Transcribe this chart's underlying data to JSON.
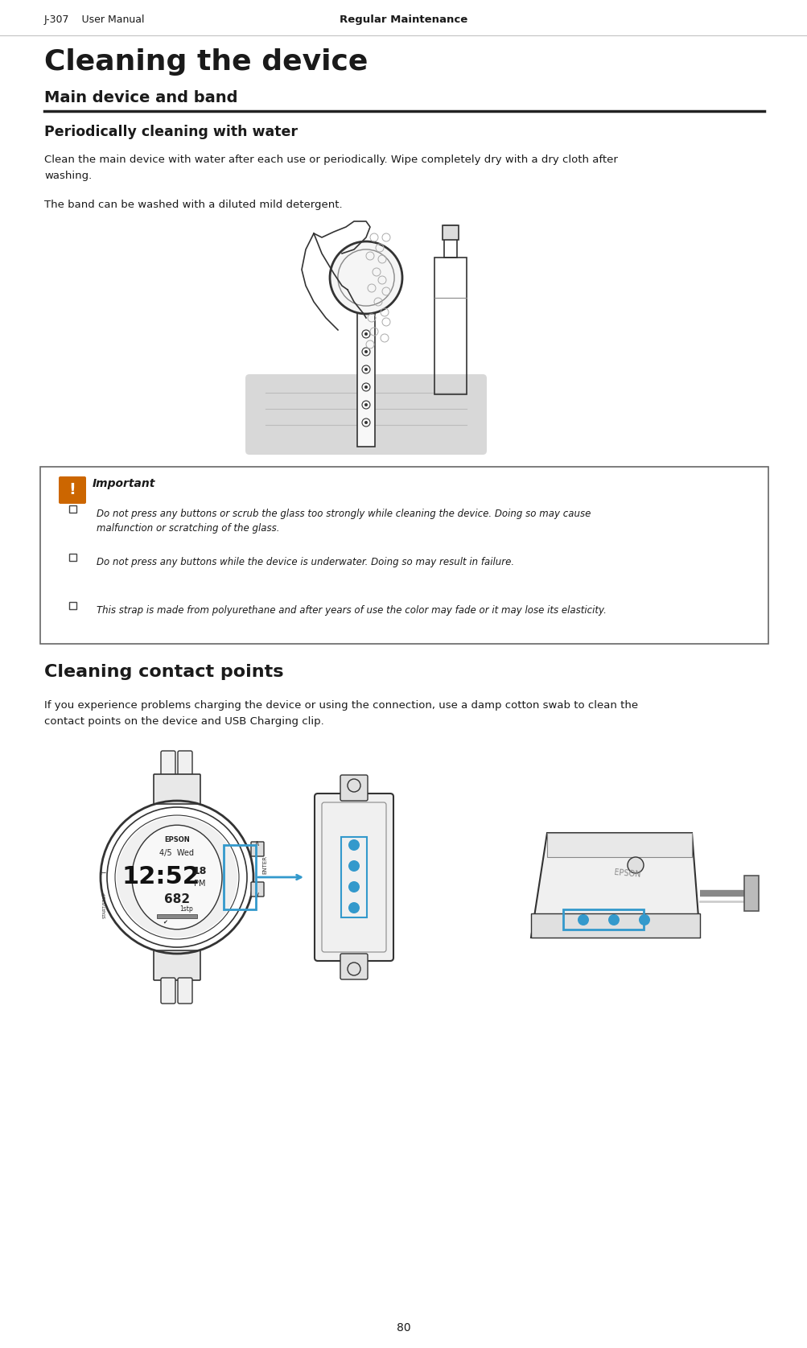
{
  "bg_color": "#ffffff",
  "header_left": "J-307    User Manual",
  "header_center": "Regular Maintenance",
  "page_number": "80",
  "main_title": "Cleaning the device",
  "section1_title": "Main device and band",
  "section1_sub": "Periodically cleaning with water",
  "para1_line1": "Clean the main device with water after each use or periodically. Wipe completely dry with a dry cloth after",
  "para1_line2": "washing.",
  "para2": "The band can be washed with a diluted mild detergent.",
  "important_title": "Important",
  "important_items": [
    "Do not press any buttons or scrub the glass too strongly while cleaning the device. Doing so may cause\nmalfunction or scratching of the glass.",
    "Do not press any buttons while the device is underwater. Doing so may result in failure.",
    "This strap is made from polyurethane and after years of use the color may fade or it may lose its elasticity."
  ],
  "section2_title": "Cleaning contact points",
  "section2_para1": "If you experience problems charging the device or using the connection, use a damp cotton swab to clean the",
  "section2_para2": "contact points on the device and USB Charging clip.",
  "text_color": "#1a1a1a",
  "icon_color": "#cc6600",
  "blue_color": "#3399cc",
  "box_border": "#666666",
  "dark_gray": "#333333",
  "med_gray": "#888888",
  "light_gray": "#cccccc",
  "pool_gray": "#d8d8d8"
}
